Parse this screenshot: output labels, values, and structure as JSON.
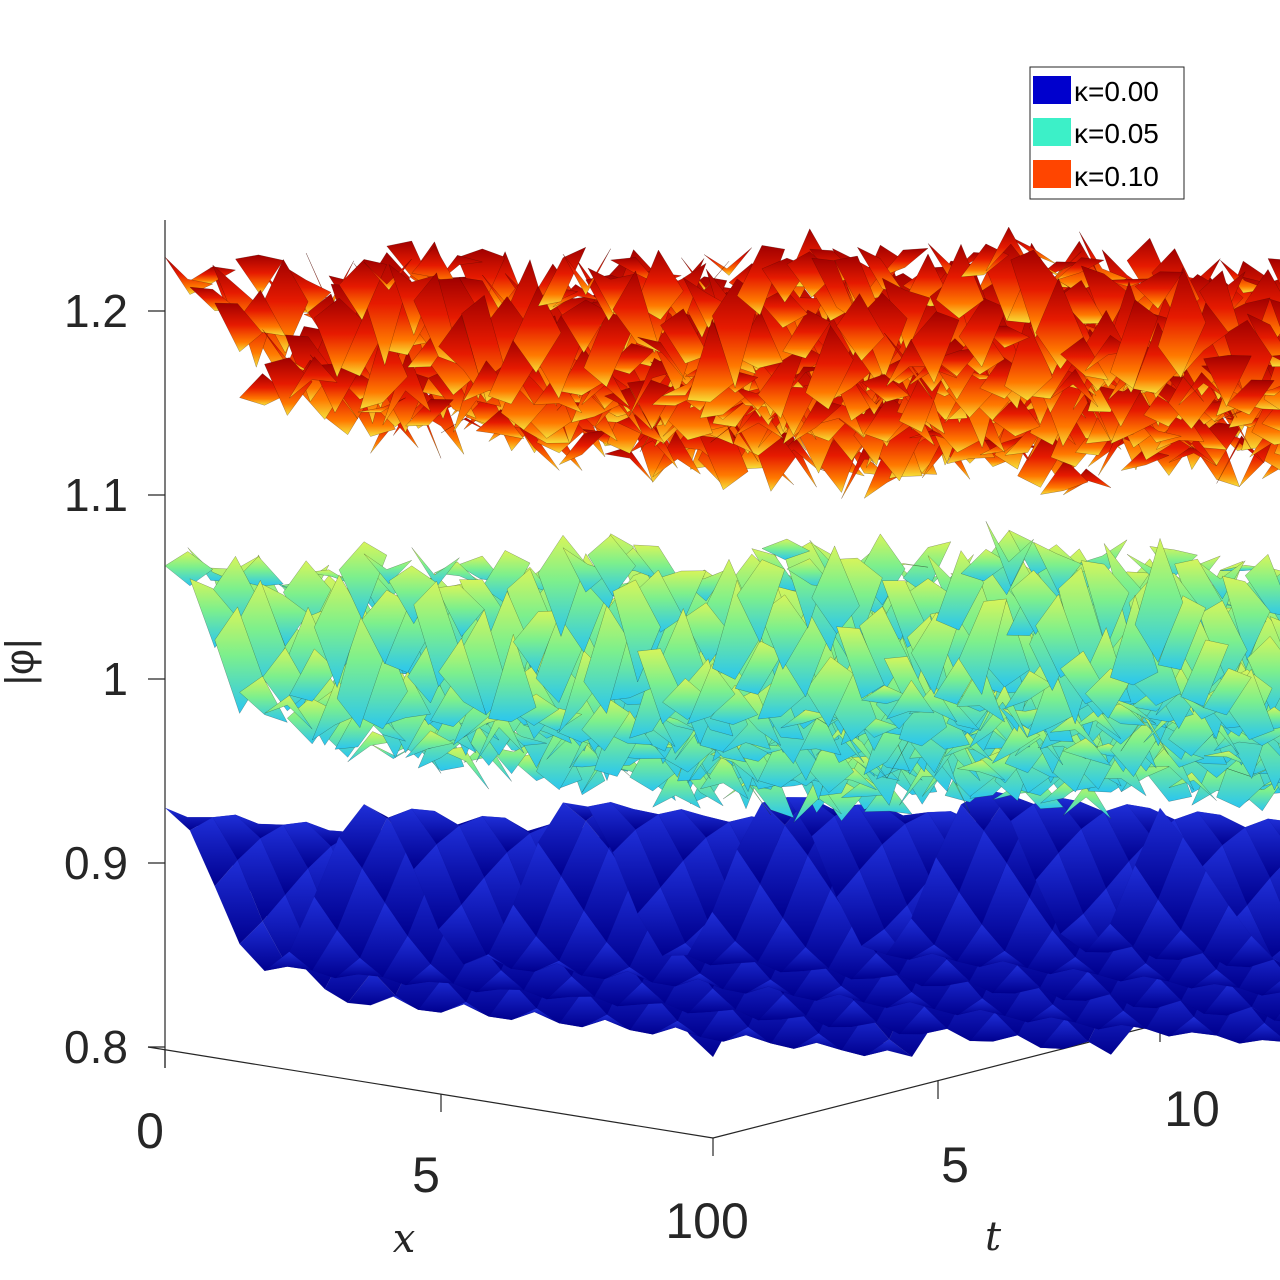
{
  "chart_data": {
    "type": "surface",
    "title": "",
    "xlabel": "x",
    "ylabel": "t",
    "zlabel": "|φ|",
    "xlim": [
      0,
      10
    ],
    "ylim": [
      0,
      10
    ],
    "zlim": [
      0.8,
      1.25
    ],
    "x_ticks": [
      "0",
      "5",
      "10"
    ],
    "t_ticks": [
      "0",
      "5",
      "10"
    ],
    "z_ticks": [
      "0.8",
      "0.9",
      "1",
      "1.1",
      "1.2"
    ],
    "z_tick_values": [
      0.8,
      0.9,
      1.0,
      1.1,
      1.2
    ],
    "legend_position": "top-right",
    "series": [
      {
        "name": "κ=0.00",
        "color": "#0000cd",
        "mean": 0.885,
        "amplitude": 0.045,
        "noise": 0.0
      },
      {
        "name": "κ=0.05",
        "color": "#3cf0c8",
        "mean": 1.02,
        "amplitude": 0.045,
        "noise": 0.012
      },
      {
        "name": "κ=0.10",
        "color": "#ff4500",
        "mean": 1.19,
        "amplitude": 0.035,
        "noise": 0.015
      }
    ]
  }
}
